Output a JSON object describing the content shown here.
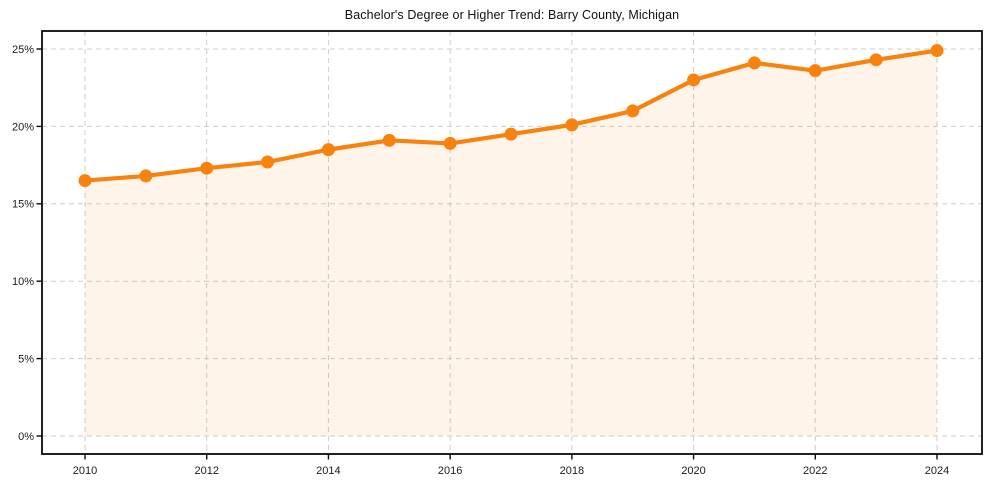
{
  "page": {
    "title": "Bachelor's Degree or Higher Trend: Barry County, Michigan"
  },
  "chart_data": {
    "type": "line",
    "title": "Bachelor's Degree or Higher Trend: Barry County, Michigan",
    "x": [
      2010,
      2011,
      2012,
      2013,
      2014,
      2015,
      2016,
      2017,
      2018,
      2019,
      2020,
      2021,
      2022,
      2023,
      2024
    ],
    "series": [
      {
        "name": "Bachelor's degree or higher (%)",
        "values": [
          16.5,
          16.8,
          17.3,
          17.7,
          18.5,
          19.1,
          18.9,
          19.5,
          20.1,
          21.0,
          23.0,
          24.1,
          23.6,
          24.3,
          24.9
        ]
      }
    ],
    "xlabel": "",
    "ylabel": "",
    "ylim": [
      0,
      25
    ],
    "yticks": [
      0,
      5,
      10,
      15,
      20,
      25
    ],
    "ytick_labels": [
      "0%",
      "5%",
      "10%",
      "15%",
      "20%",
      "25%"
    ],
    "xticks": [
      2010,
      2012,
      2014,
      2016,
      2018,
      2020,
      2022,
      2024
    ],
    "xtick_labels": [
      "2010",
      "2012",
      "2014",
      "2016",
      "2018",
      "2020",
      "2022",
      "2024"
    ],
    "grid": "dashed, both axes at labeled ticks",
    "legend_position": "none",
    "marker": "circle",
    "area_fill": true,
    "colors": {
      "line": "#f8820e",
      "marker": "#f8820e",
      "area": "rgba(248,130,14,0.09)",
      "grid": "#cdcdcd",
      "spine": "#0a0a0a",
      "tick_text": "#1c1c1c",
      "title_text": "#111111",
      "background": "#ffffff"
    }
  }
}
